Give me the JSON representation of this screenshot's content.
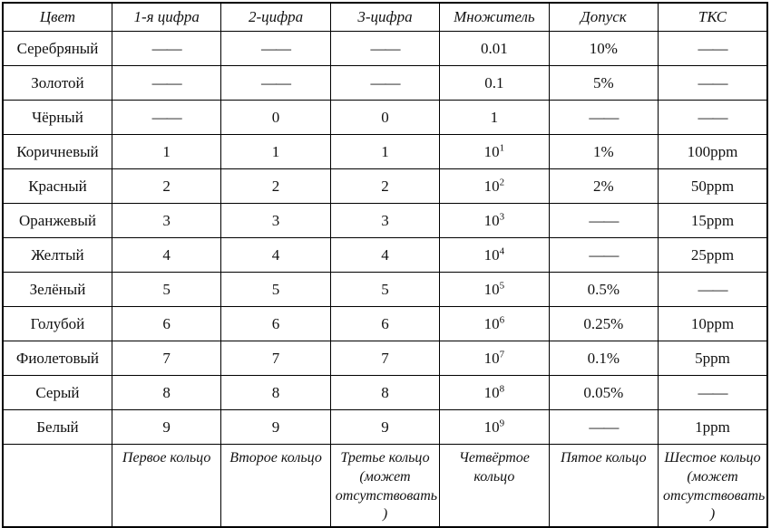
{
  "table": {
    "title": "resistor-color-code-table",
    "headers": [
      "Цвет",
      "1-я цифра",
      "2-цифра",
      "3-цифра",
      "Множитель",
      "Допуск",
      "ТКС"
    ],
    "dash": "——",
    "rows": [
      [
        "Серебряный",
        "——",
        "——",
        "——",
        "0.01",
        "10%",
        "——"
      ],
      [
        "Золотой",
        "——",
        "——",
        "——",
        "0.1",
        "5%",
        "——"
      ],
      [
        "Чёрный",
        "——",
        "0",
        "0",
        "1",
        "——",
        "——"
      ],
      [
        "Коричневый",
        "1",
        "1",
        "1",
        "10^1",
        "1%",
        "100ppm"
      ],
      [
        "Красный",
        "2",
        "2",
        "2",
        "10^2",
        "2%",
        "50ppm"
      ],
      [
        "Оранжевый",
        "3",
        "3",
        "3",
        "10^3",
        "——",
        "15ppm"
      ],
      [
        "Желтый",
        "4",
        "4",
        "4",
        "10^4",
        "——",
        "25ppm"
      ],
      [
        "Зелёный",
        "5",
        "5",
        "5",
        "10^5",
        "0.5%",
        "——"
      ],
      [
        "Голубой",
        "6",
        "6",
        "6",
        "10^6",
        "0.25%",
        "10ppm"
      ],
      [
        "Фиолетовый",
        "7",
        "7",
        "7",
        "10^7",
        "0.1%",
        "5ppm"
      ],
      [
        "Серый",
        "8",
        "8",
        "8",
        "10^8",
        "0.05%",
        "——"
      ],
      [
        "Белый",
        "9",
        "9",
        "9",
        "10^9",
        "——",
        "1ppm"
      ]
    ],
    "footer": [
      "",
      "Первое кольцо",
      "Второе кольцо",
      "Третье кольцо (может отсутствовать )",
      "Четвёртое кольцо",
      "Пятое кольцо",
      "Шестое кольцо (может отсутствовать )"
    ]
  },
  "colors": {
    "border": "#000000",
    "text": "#111111",
    "background": "#ffffff"
  }
}
